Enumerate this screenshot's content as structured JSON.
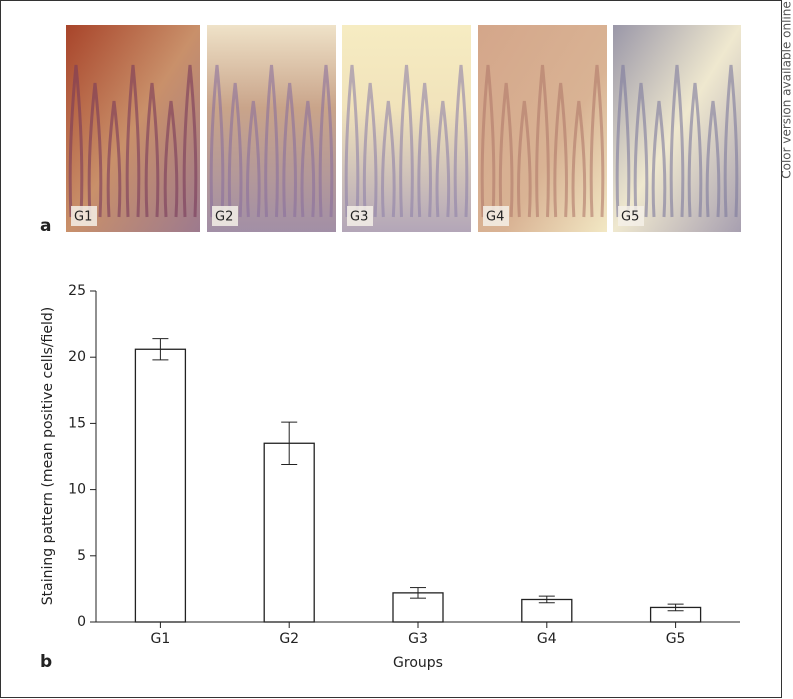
{
  "side_note": "Color version available online",
  "panel_a": {
    "label": "a",
    "images": [
      "G1",
      "G2",
      "G3",
      "G4",
      "G5"
    ]
  },
  "chart_data": {
    "type": "bar",
    "panel_label": "b",
    "categories": [
      "G1",
      "G2",
      "G3",
      "G4",
      "G5"
    ],
    "values": [
      20.6,
      13.5,
      2.2,
      1.7,
      1.1
    ],
    "errors": [
      0.8,
      1.6,
      0.4,
      0.25,
      0.25
    ],
    "color": "#ffffff",
    "ylim": [
      0,
      25
    ],
    "yticks": [
      0,
      5,
      10,
      15,
      20,
      25
    ],
    "ylabel": "Staining pattern (mean positive cells/field)",
    "xlabel": "Groups",
    "grid": false
  }
}
